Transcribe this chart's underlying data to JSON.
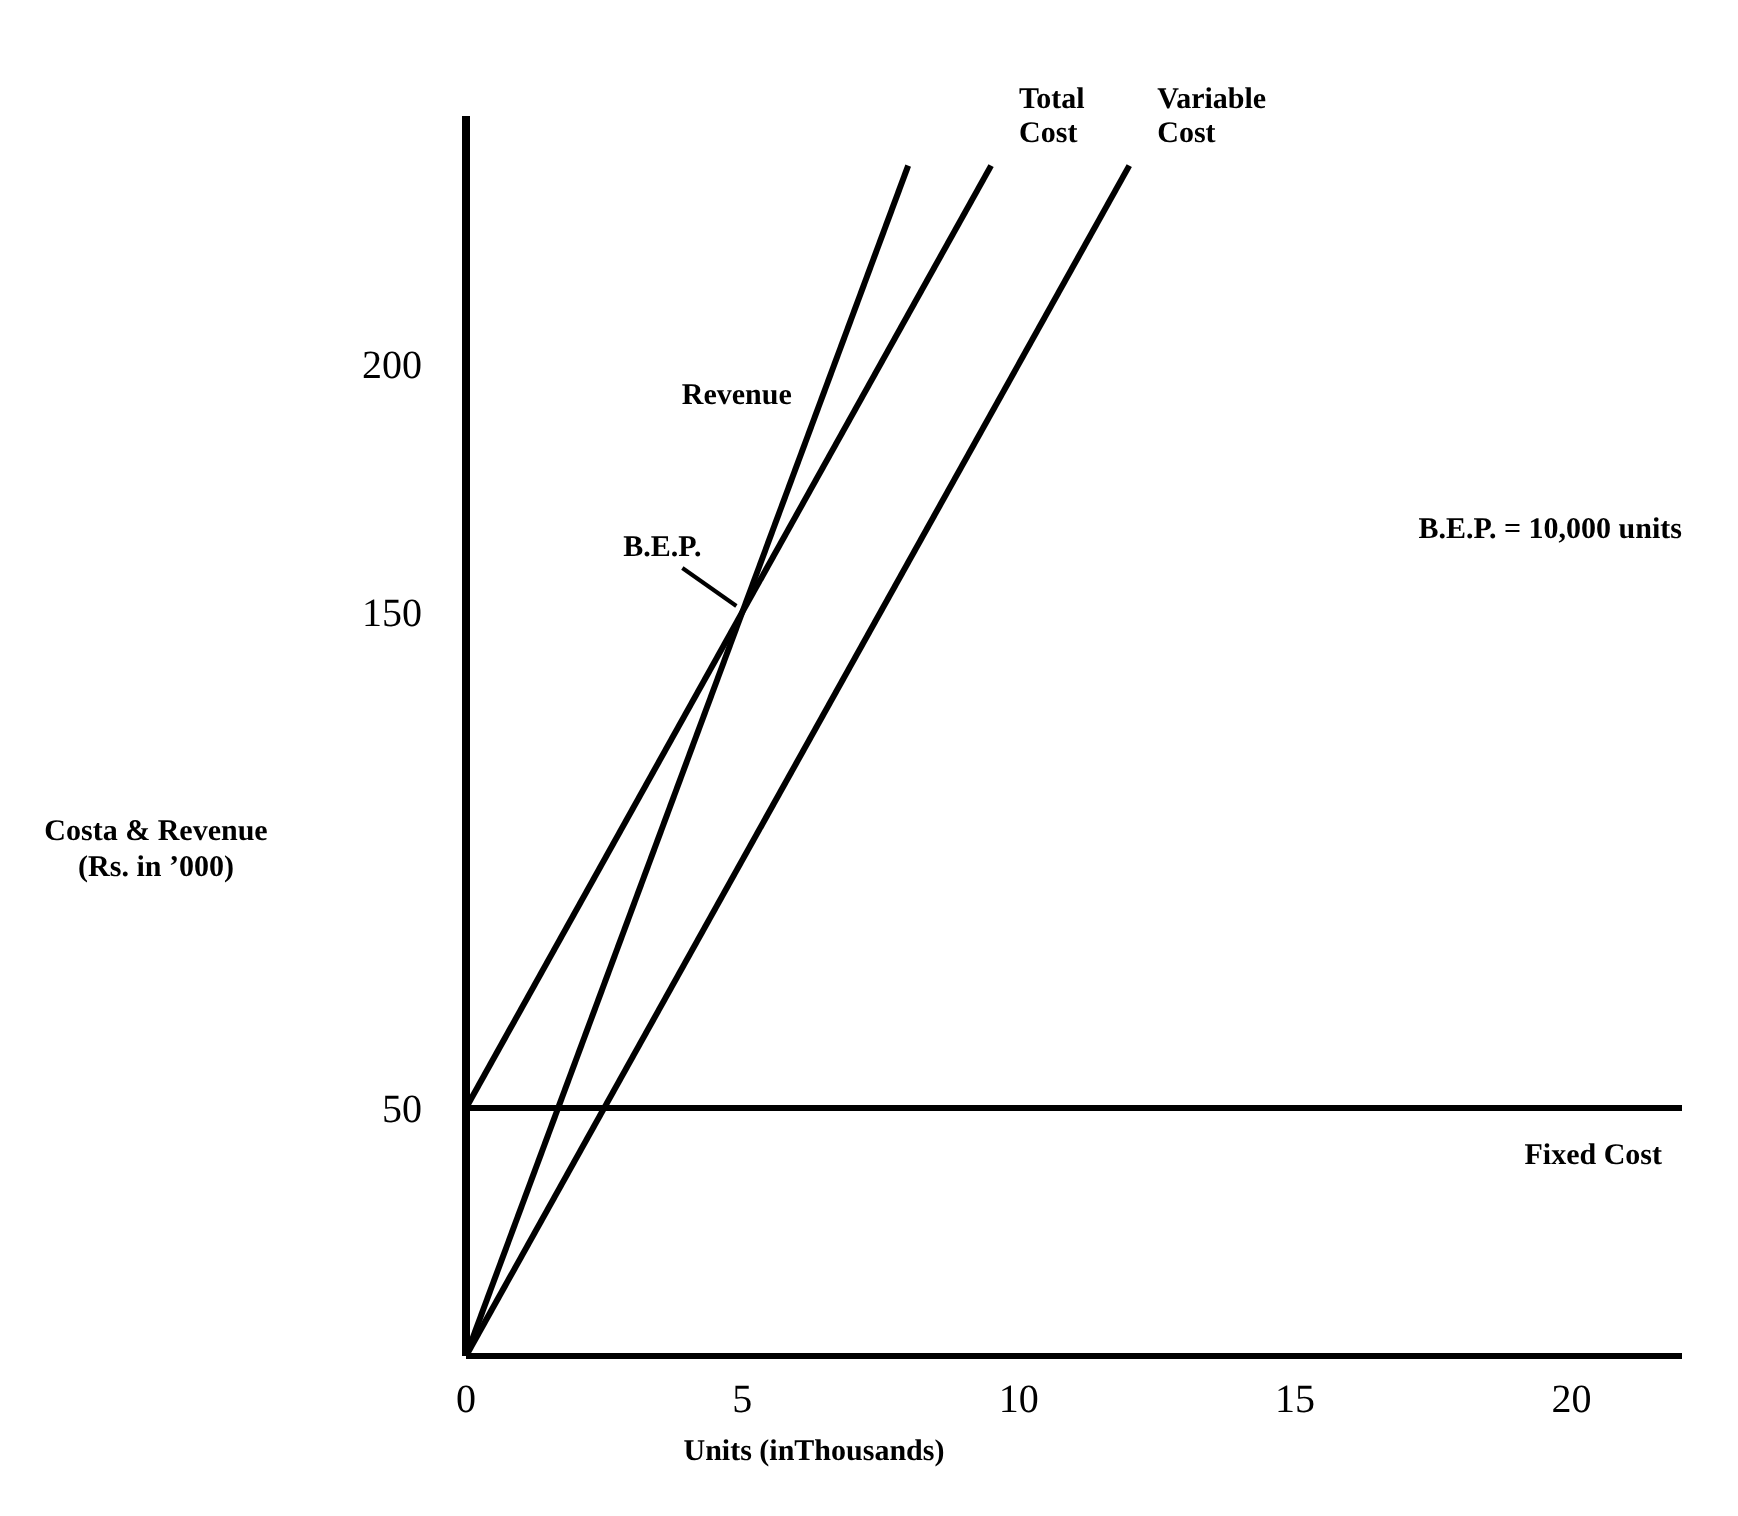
{
  "chart_data": {
    "type": "line",
    "xlabel": "Units (inThousands)",
    "ylabel": "Costa & Revenue\n(Rs. in ’000)",
    "xlim": [
      0,
      22
    ],
    "ylim": [
      0,
      250
    ],
    "xticks": [
      0,
      5,
      10,
      15,
      20
    ],
    "yticks": [
      50,
      150,
      200
    ],
    "grid": false,
    "marker": "none",
    "line_style": "solid",
    "series": [
      {
        "name": "Revenue",
        "color": "#000000",
        "x": [
          0,
          8
        ],
        "values": [
          0,
          240
        ]
      },
      {
        "name": "Total Cost",
        "color": "#000000",
        "x": [
          0,
          9.5
        ],
        "values": [
          50,
          240
        ]
      },
      {
        "name": "Variable Cost",
        "color": "#000000",
        "x": [
          0,
          12
        ],
        "values": [
          0,
          240
        ]
      },
      {
        "name": "Fixed Cost",
        "color": "#000000",
        "x": [
          0,
          22
        ],
        "values": [
          50,
          50
        ]
      }
    ],
    "annotations": [
      {
        "text": "B.E.P.",
        "x": 5,
        "y": 150
      },
      "B.E.P. = 10,000 units"
    ]
  }
}
